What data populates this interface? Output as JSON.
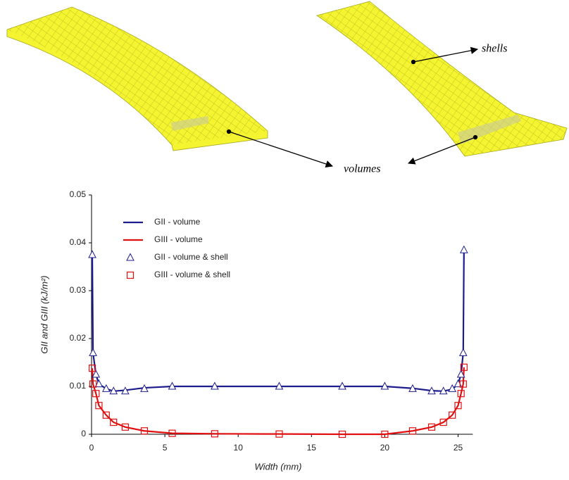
{
  "figure": {
    "annotations": [
      "shells",
      "volumes"
    ]
  },
  "chart_data": {
    "type": "line",
    "x_label": "Width (mm)",
    "y_label": "GII and GIII (kJ/m²)",
    "xlim": [
      0,
      26
    ],
    "xticks": [
      0,
      5,
      10,
      15,
      20,
      25
    ],
    "ylim": [
      0,
      0.05
    ],
    "yticks": [
      0,
      0.01,
      0.02,
      0.03,
      0.04,
      0.05
    ],
    "legend": "upper left",
    "x": [
      0.05,
      0.1,
      0.3,
      0.5,
      1,
      1.5,
      2.3,
      3.6,
      5.5,
      8.4,
      12.8,
      17.1,
      20,
      21.9,
      23.2,
      24,
      24.6,
      25,
      25.2,
      25.35,
      25.4
    ],
    "series": [
      {
        "name": "GII - volume",
        "style": "line",
        "color": "#1c1c8c",
        "values": [
          0.037,
          0.017,
          0.0125,
          0.0105,
          0.0095,
          0.009,
          0.0092,
          0.0097,
          0.01,
          0.01,
          0.01,
          0.01,
          0.01,
          0.0096,
          0.0091,
          0.009,
          0.0094,
          0.0105,
          0.0125,
          0.017,
          0.038
        ]
      },
      {
        "name": "GIII - volume",
        "style": "line",
        "color": "#e01010",
        "values": [
          0.0138,
          0.0105,
          0.0085,
          0.006,
          0.004,
          0.0025,
          0.0015,
          0.0007,
          0.0002,
          0.0001,
          5e-05,
          0,
          0,
          0.0007,
          0.0015,
          0.0025,
          0.004,
          0.006,
          0.0085,
          0.0105,
          0.014
        ]
      },
      {
        "name": "GII - volume & shell",
        "style": "marker",
        "marker": "triangle",
        "color": "#1c1c8c",
        "values": [
          0.0375,
          0.017,
          0.0125,
          0.0105,
          0.0095,
          0.009,
          0.009,
          0.0095,
          0.01,
          0.01,
          0.01,
          0.01,
          0.01,
          0.0095,
          0.009,
          0.009,
          0.0095,
          0.0105,
          0.0125,
          0.017,
          0.0385
        ]
      },
      {
        "name": "GIII - volume & shell",
        "style": "marker",
        "marker": "square",
        "color": "#e01010",
        "values": [
          0.0138,
          0.0105,
          0.0085,
          0.006,
          0.004,
          0.0025,
          0.0015,
          0.0007,
          0.0002,
          0.0001,
          5e-05,
          0,
          0,
          0.0007,
          0.0015,
          0.0025,
          0.004,
          0.006,
          0.0085,
          0.0105,
          0.014
        ]
      }
    ]
  }
}
